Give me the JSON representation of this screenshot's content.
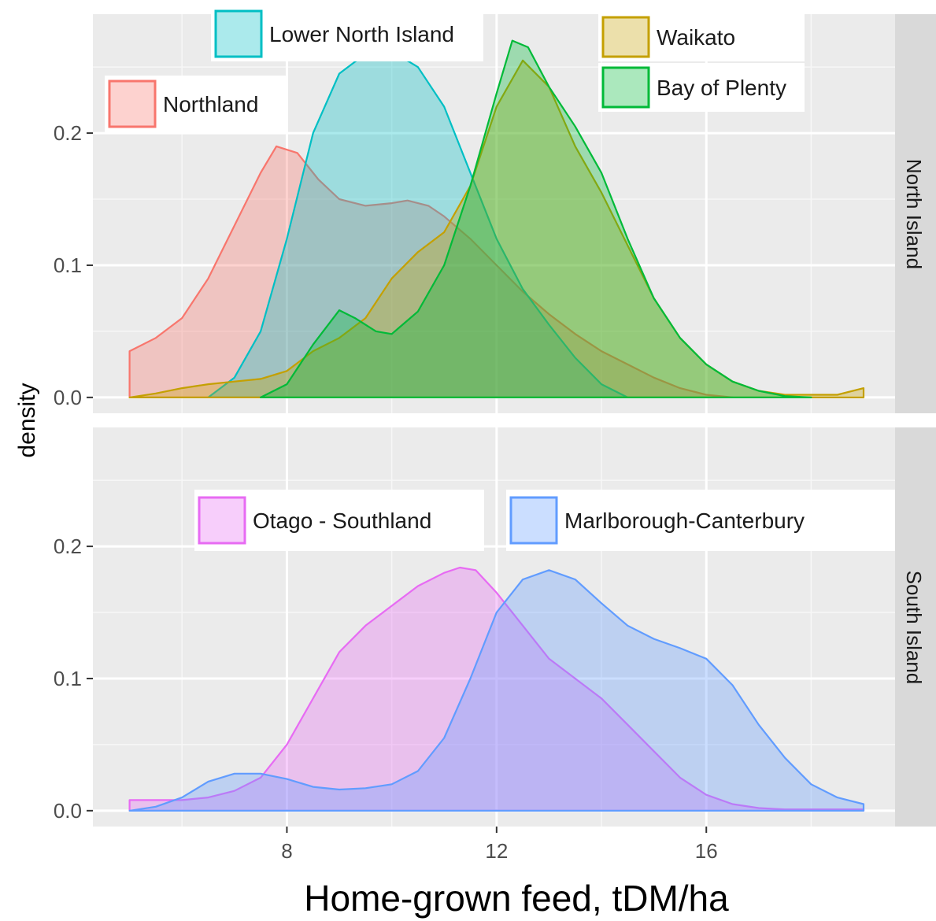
{
  "chart_data": {
    "type": "area",
    "chart_kind": "density",
    "xlabel": "Home-grown feed, tDM/ha",
    "ylabel": "density",
    "xlim": [
      4.3,
      19.6
    ],
    "x_ticks": [
      8,
      12,
      16
    ],
    "x_tick_labels": [
      "8",
      "12",
      "16"
    ],
    "grid": true,
    "legend_placement": "inside each panel, near each curve",
    "panels": [
      {
        "strip_label": "North Island",
        "ylim": [
          -0.012,
          0.29
        ],
        "y_ticks": [
          0.0,
          0.1,
          0.2
        ],
        "y_tick_labels": [
          "0.0",
          "0.1",
          "0.2"
        ],
        "series": [
          {
            "name": "Northland",
            "color": "#f8766d",
            "points": [
              [
                5,
                0.035
              ],
              [
                5.5,
                0.045
              ],
              [
                6,
                0.06
              ],
              [
                6.5,
                0.09
              ],
              [
                7,
                0.13
              ],
              [
                7.5,
                0.17
              ],
              [
                7.8,
                0.19
              ],
              [
                8.2,
                0.185
              ],
              [
                8.6,
                0.165
              ],
              [
                9,
                0.15
              ],
              [
                9.5,
                0.145
              ],
              [
                10,
                0.147
              ],
              [
                10.3,
                0.149
              ],
              [
                10.7,
                0.145
              ],
              [
                11,
                0.137
              ],
              [
                11.5,
                0.12
              ],
              [
                12,
                0.1
              ],
              [
                12.5,
                0.08
              ],
              [
                13,
                0.063
              ],
              [
                13.5,
                0.048
              ],
              [
                14,
                0.035
              ],
              [
                14.5,
                0.025
              ],
              [
                15,
                0.015
              ],
              [
                15.5,
                0.007
              ],
              [
                16,
                0.002
              ],
              [
                16.5,
                0
              ]
            ]
          },
          {
            "name": "Lower North Island",
            "color": "#00bfc4",
            "points": [
              [
                6.5,
                0
              ],
              [
                7,
                0.015
              ],
              [
                7.5,
                0.05
              ],
              [
                8,
                0.12
              ],
              [
                8.5,
                0.2
              ],
              [
                9,
                0.245
              ],
              [
                9.5,
                0.26
              ],
              [
                10,
                0.262
              ],
              [
                10.5,
                0.25
              ],
              [
                11,
                0.22
              ],
              [
                11.5,
                0.17
              ],
              [
                12,
                0.12
              ],
              [
                12.5,
                0.082
              ],
              [
                13,
                0.055
              ],
              [
                13.5,
                0.03
              ],
              [
                14,
                0.01
              ],
              [
                14.5,
                0
              ]
            ]
          },
          {
            "name": "Waikato",
            "color": "#c4a000",
            "points": [
              [
                5,
                0
              ],
              [
                5.5,
                0.003
              ],
              [
                6,
                0.007
              ],
              [
                6.5,
                0.01
              ],
              [
                7,
                0.012
              ],
              [
                7.5,
                0.014
              ],
              [
                8,
                0.02
              ],
              [
                8.5,
                0.035
              ],
              [
                9,
                0.045
              ],
              [
                9.5,
                0.06
              ],
              [
                10,
                0.09
              ],
              [
                10.5,
                0.11
              ],
              [
                11,
                0.125
              ],
              [
                11.5,
                0.16
              ],
              [
                12,
                0.22
              ],
              [
                12.5,
                0.255
              ],
              [
                13,
                0.235
              ],
              [
                13.5,
                0.19
              ],
              [
                14,
                0.155
              ],
              [
                14.5,
                0.115
              ],
              [
                15,
                0.075
              ],
              [
                15.5,
                0.045
              ],
              [
                16,
                0.025
              ],
              [
                16.5,
                0.012
              ],
              [
                17,
                0.005
              ],
              [
                17.5,
                0.002
              ],
              [
                18,
                0.002
              ],
              [
                18.5,
                0.002
              ],
              [
                19,
                0.007
              ],
              [
                19,
                0
              ]
            ]
          },
          {
            "name": "Bay of Plenty",
            "color": "#00ba38",
            "points": [
              [
                7.5,
                0
              ],
              [
                8,
                0.01
              ],
              [
                8.5,
                0.04
              ],
              [
                9,
                0.066
              ],
              [
                9.3,
                0.06
              ],
              [
                9.7,
                0.05
              ],
              [
                10,
                0.048
              ],
              [
                10.5,
                0.065
              ],
              [
                11,
                0.1
              ],
              [
                11.5,
                0.16
              ],
              [
                12,
                0.23
              ],
              [
                12.3,
                0.27
              ],
              [
                12.6,
                0.265
              ],
              [
                13,
                0.235
              ],
              [
                13.5,
                0.205
              ],
              [
                14,
                0.17
              ],
              [
                14.5,
                0.12
              ],
              [
                15,
                0.075
              ],
              [
                15.5,
                0.045
              ],
              [
                16,
                0.025
              ],
              [
                16.5,
                0.012
              ],
              [
                17,
                0.005
              ],
              [
                17.5,
                0.001
              ],
              [
                18,
                0
              ]
            ]
          }
        ],
        "legend": [
          {
            "label": "Lower North Island",
            "color": "#00bfc4"
          },
          {
            "label": "Northland",
            "color": "#f8766d"
          },
          {
            "label": "Waikato",
            "color": "#c4a000"
          },
          {
            "label": "Bay of Plenty",
            "color": "#00ba38"
          }
        ]
      },
      {
        "strip_label": "South Island",
        "ylim": [
          -0.012,
          0.29
        ],
        "y_ticks": [
          0.0,
          0.1,
          0.2
        ],
        "y_tick_labels": [
          "0.0",
          "0.1",
          "0.2"
        ],
        "series": [
          {
            "name": "Otago - Southland",
            "color": "#e76bf3",
            "points": [
              [
                5,
                0.008
              ],
              [
                5.5,
                0.008
              ],
              [
                6,
                0.008
              ],
              [
                6.5,
                0.01
              ],
              [
                7,
                0.015
              ],
              [
                7.5,
                0.025
              ],
              [
                8,
                0.05
              ],
              [
                8.5,
                0.085
              ],
              [
                9,
                0.12
              ],
              [
                9.5,
                0.14
              ],
              [
                10,
                0.155
              ],
              [
                10.5,
                0.17
              ],
              [
                11,
                0.18
              ],
              [
                11.3,
                0.184
              ],
              [
                11.6,
                0.182
              ],
              [
                12,
                0.165
              ],
              [
                12.5,
                0.14
              ],
              [
                13,
                0.115
              ],
              [
                13.5,
                0.1
              ],
              [
                14,
                0.085
              ],
              [
                14.5,
                0.065
              ],
              [
                15,
                0.045
              ],
              [
                15.5,
                0.025
              ],
              [
                16,
                0.012
              ],
              [
                16.5,
                0.005
              ],
              [
                17,
                0.002
              ],
              [
                17.5,
                0.001
              ],
              [
                18,
                0.001
              ],
              [
                19,
                0.001
              ]
            ]
          },
          {
            "name": "Marlborough-Canterbury",
            "color": "#619cff",
            "points": [
              [
                5,
                0
              ],
              [
                5.5,
                0.003
              ],
              [
                6,
                0.01
              ],
              [
                6.5,
                0.022
              ],
              [
                7,
                0.028
              ],
              [
                7.5,
                0.028
              ],
              [
                8,
                0.024
              ],
              [
                8.5,
                0.018
              ],
              [
                9,
                0.016
              ],
              [
                9.5,
                0.017
              ],
              [
                10,
                0.02
              ],
              [
                10.5,
                0.03
              ],
              [
                11,
                0.055
              ],
              [
                11.5,
                0.1
              ],
              [
                12,
                0.15
              ],
              [
                12.5,
                0.175
              ],
              [
                13,
                0.182
              ],
              [
                13.5,
                0.175
              ],
              [
                14,
                0.157
              ],
              [
                14.5,
                0.14
              ],
              [
                15,
                0.13
              ],
              [
                15.5,
                0.123
              ],
              [
                16,
                0.115
              ],
              [
                16.5,
                0.095
              ],
              [
                17,
                0.065
              ],
              [
                17.5,
                0.04
              ],
              [
                18,
                0.02
              ],
              [
                18.5,
                0.01
              ],
              [
                19,
                0.005
              ]
            ]
          }
        ],
        "legend": [
          {
            "label": "Otago - Southland",
            "color": "#e76bf3"
          },
          {
            "label": "Marlborough-Canterbury",
            "color": "#619cff"
          }
        ]
      }
    ]
  }
}
